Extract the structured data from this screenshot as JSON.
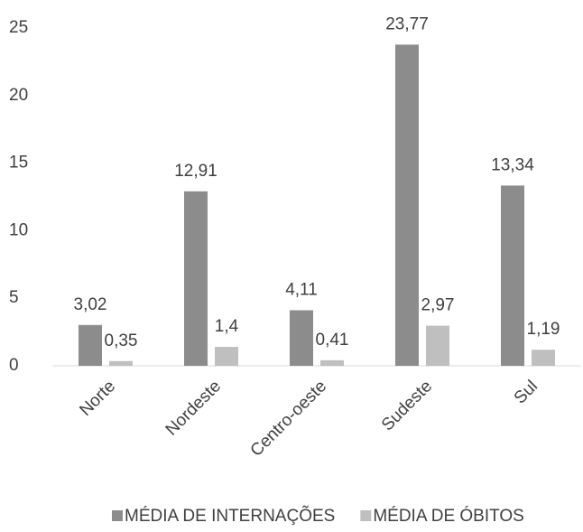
{
  "chart_data": {
    "type": "bar",
    "categories": [
      "Norte",
      "Nordeste",
      "Centro-oeste",
      "Sudeste",
      "Sul"
    ],
    "series": [
      {
        "name": "MÉDIA DE INTERNAÇÕES",
        "color": "#8c8c8c",
        "values": [
          3.02,
          12.91,
          4.11,
          23.77,
          13.34
        ],
        "value_labels": [
          "3,02",
          "12,91",
          "4,11",
          "23,77",
          "13,34"
        ]
      },
      {
        "name": "MÉDIA DE ÓBITOS",
        "color": "#bfbfbf",
        "values": [
          0.35,
          1.4,
          0.41,
          2.97,
          1.19
        ],
        "value_labels": [
          "0,35",
          "1,4",
          "0,41",
          "2,97",
          "1,19"
        ]
      }
    ],
    "ylim": [
      0,
      25
    ],
    "yticks": [
      0,
      5,
      10,
      15,
      20,
      25
    ],
    "grid": false,
    "legend": "bottom"
  }
}
